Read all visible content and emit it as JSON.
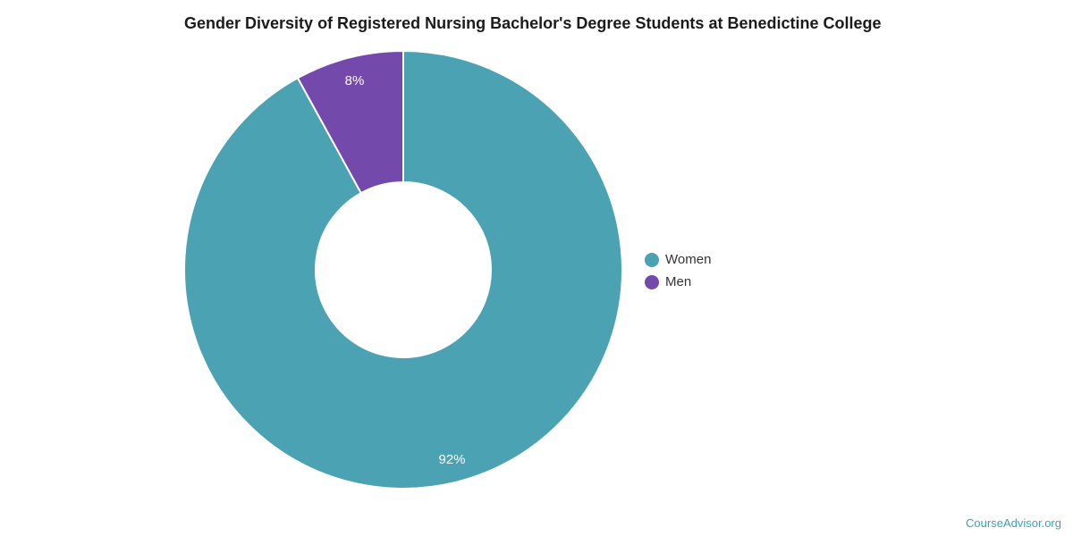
{
  "chart_data": {
    "type": "pie",
    "subtype": "donut",
    "title": "Gender Diversity of Registered Nursing Bachelor's Degree Students at Benedictine College",
    "categories": [
      "Women",
      "Men"
    ],
    "values": [
      92,
      8
    ],
    "labels": [
      "92%",
      "8%"
    ],
    "unit": "%",
    "colors": [
      "#4ba2b2",
      "#7349ac"
    ],
    "slice_label_color": "#ffffff",
    "legend_position": "right",
    "start_angle_deg": 0,
    "direction": "clockwise",
    "inner_radius_ratio": 0.4,
    "grid": false
  },
  "legend": {
    "items": [
      {
        "label": "Women",
        "color": "#4ba2b2"
      },
      {
        "label": "Men",
        "color": "#7349ac"
      }
    ]
  },
  "branding": {
    "label": "CourseAdvisor.org",
    "color": "#3e9fb4"
  }
}
